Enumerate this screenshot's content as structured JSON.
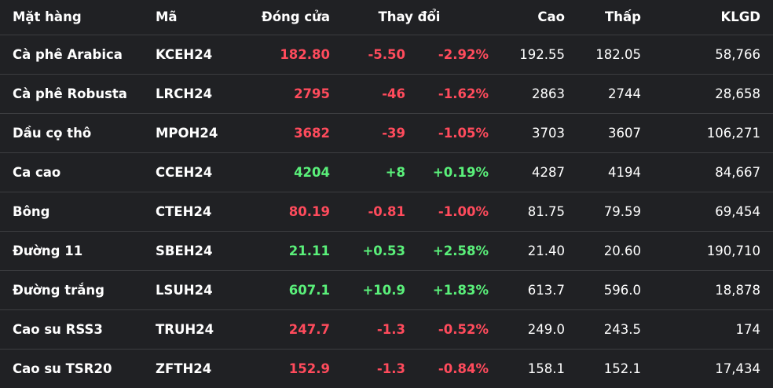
{
  "headers": {
    "name": "Mặt hàng",
    "code": "Mã",
    "close": "Đóng cửa",
    "change": "Thay đổi",
    "high": "Cao",
    "low": "Thấp",
    "volume": "KLGD"
  },
  "colors": {
    "down": "#ff4b5c",
    "up": "#5af07a",
    "background": "#202124"
  },
  "rows": [
    {
      "name": "Cà phê Arabica",
      "code": "KCEH24",
      "close": "182.80",
      "change": "-5.50",
      "pct": "-2.92%",
      "high": "192.55",
      "low": "182.05",
      "volume": "58,766",
      "dir": "down"
    },
    {
      "name": "Cà phê Robusta",
      "code": "LRCH24",
      "close": "2795",
      "change": "-46",
      "pct": "-1.62%",
      "high": "2863",
      "low": "2744",
      "volume": "28,658",
      "dir": "down"
    },
    {
      "name": "Dầu cọ thô",
      "code": "MPOH24",
      "close": "3682",
      "change": "-39",
      "pct": "-1.05%",
      "high": "3703",
      "low": "3607",
      "volume": "106,271",
      "dir": "down"
    },
    {
      "name": "Ca cao",
      "code": "CCEH24",
      "close": "4204",
      "change": "+8",
      "pct": "+0.19%",
      "high": "4287",
      "low": "4194",
      "volume": "84,667",
      "dir": "up"
    },
    {
      "name": "Bông",
      "code": "CTEH24",
      "close": "80.19",
      "change": "-0.81",
      "pct": "-1.00%",
      "high": "81.75",
      "low": "79.59",
      "volume": "69,454",
      "dir": "down"
    },
    {
      "name": "Đường 11",
      "code": "SBEH24",
      "close": "21.11",
      "change": "+0.53",
      "pct": "+2.58%",
      "high": "21.40",
      "low": "20.60",
      "volume": "190,710",
      "dir": "up"
    },
    {
      "name": "Đường trắng",
      "code": "LSUH24",
      "close": "607.1",
      "change": "+10.9",
      "pct": "+1.83%",
      "high": "613.7",
      "low": "596.0",
      "volume": "18,878",
      "dir": "up"
    },
    {
      "name": "Cao su RSS3",
      "code": "TRUH24",
      "close": "247.7",
      "change": "-1.3",
      "pct": "-0.52%",
      "high": "249.0",
      "low": "243.5",
      "volume": "174",
      "dir": "down"
    },
    {
      "name": "Cao su TSR20",
      "code": "ZFTH24",
      "close": "152.9",
      "change": "-1.3",
      "pct": "-0.84%",
      "high": "158.1",
      "low": "152.1",
      "volume": "17,434",
      "dir": "down"
    }
  ]
}
